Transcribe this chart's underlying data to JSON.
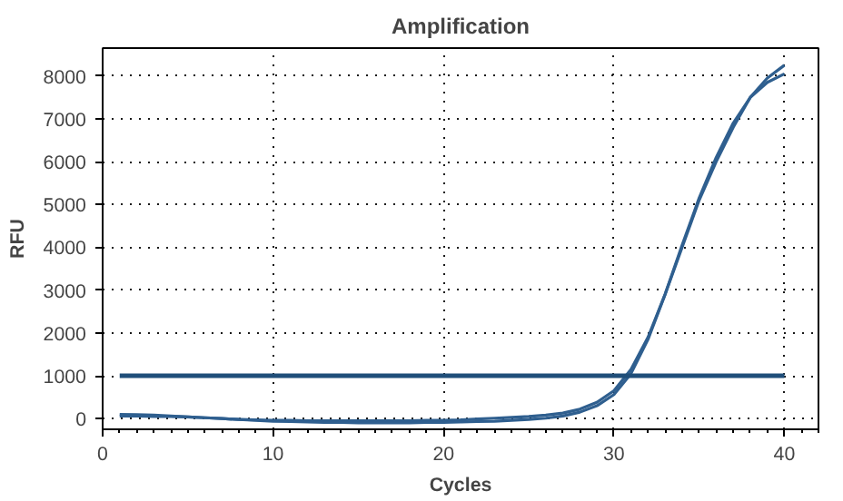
{
  "chart_data": {
    "type": "line",
    "title": "Amplification",
    "xlabel": "Cycles",
    "ylabel": "RFU",
    "x": [
      1,
      2,
      3,
      4,
      5,
      6,
      7,
      8,
      9,
      10,
      11,
      12,
      13,
      14,
      15,
      16,
      17,
      18,
      19,
      20,
      21,
      22,
      23,
      24,
      25,
      26,
      27,
      28,
      29,
      30,
      31,
      32,
      33,
      34,
      35,
      36,
      37,
      38,
      39,
      40
    ],
    "series": [
      {
        "color": "#2f5f8f",
        "values": [
          100,
          90,
          80,
          60,
          40,
          20,
          0,
          -20,
          -30,
          -40,
          -40,
          -50,
          -50,
          -50,
          -50,
          -50,
          -50,
          -50,
          -40,
          -40,
          -30,
          -10,
          10,
          30,
          50,
          80,
          130,
          220,
          380,
          650,
          1150,
          1900,
          2900,
          4000,
          5100,
          6000,
          6800,
          7500,
          7950,
          8250
        ]
      },
      {
        "color": "#2f5f8f",
        "values": [
          60,
          60,
          50,
          50,
          40,
          20,
          0,
          -20,
          -40,
          -60,
          -70,
          -80,
          -90,
          -90,
          -100,
          -100,
          -100,
          -100,
          -90,
          -90,
          -80,
          -70,
          -60,
          -40,
          -20,
          10,
          60,
          150,
          300,
          560,
          1050,
          1850,
          2900,
          4050,
          5150,
          6100,
          6900,
          7500,
          7850,
          8050
        ]
      }
    ],
    "xlim": [
      0,
      42
    ],
    "xticks": [
      0,
      10,
      20,
      30,
      40
    ],
    "ylim": [
      -250,
      8650
    ],
    "yticks": [
      0,
      1000,
      2000,
      3000,
      4000,
      5000,
      6000,
      7000,
      8000
    ],
    "ref_lines": [
      {
        "axis": "y",
        "value": 1000,
        "color": "#1f4e79"
      }
    ],
    "grid": true,
    "marker": "none",
    "line_style": "solid"
  }
}
